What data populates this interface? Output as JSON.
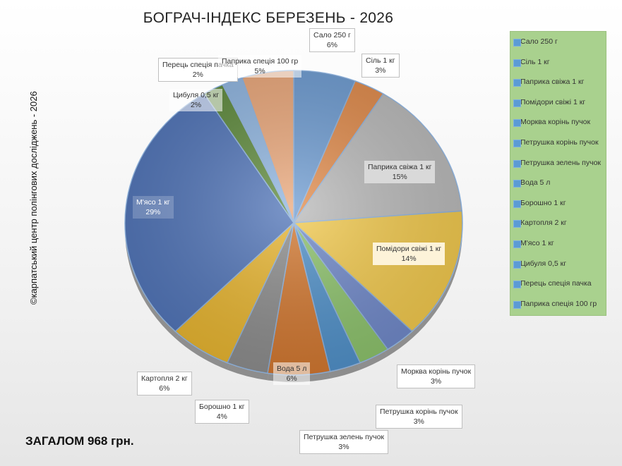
{
  "title": "БОГРАЧ-ІНДЕКС БЕРЕЗЕНЬ - 2026",
  "credit": "©карпатський центр полінгових досліджень - 2026",
  "total": "ЗАГАЛОМ 968 грн.",
  "chart_data": {
    "type": "pie",
    "title": "БОГРАЧ-ІНДЕКС БЕРЕЗЕНЬ - 2026",
    "unit": "%",
    "slices": [
      {
        "name": "Сало 250 г",
        "value": 6,
        "label": "6%",
        "color": "#6d9bd1"
      },
      {
        "name": "Сіль 1 кг",
        "value": 3,
        "label": "3%",
        "color": "#e08a4a"
      },
      {
        "name": "Паприка свіжа 1 кг",
        "value": 15,
        "label": "15%",
        "color": "#b9b9b9"
      },
      {
        "name": "Помідори свіжі 1 кг",
        "value": 14,
        "label": "14%",
        "color": "#f2c94c"
      },
      {
        "name": "Морква корінь пучок",
        "value": 3,
        "label": "3%",
        "color": "#6f88c9"
      },
      {
        "name": "Петрушка корінь пучок",
        "value": 3,
        "label": "3%",
        "color": "#8cc26b"
      },
      {
        "name": "Петрушка зелень пучок",
        "value": 3,
        "label": "3%",
        "color": "#4f90c9"
      },
      {
        "name": "Вода 5 л",
        "value": 6,
        "label": "6%",
        "color": "#d2772f"
      },
      {
        "name": "Борошно 1 кг",
        "value": 4,
        "label": "4%",
        "color": "#8c8c8c"
      },
      {
        "name": "Картопля 2 кг",
        "value": 6,
        "label": "6%",
        "color": "#e8b52f"
      },
      {
        "name": "М'ясо 1 кг",
        "value": 29,
        "label": "29%",
        "color": "#5074b8"
      },
      {
        "name": "Цибуля 0,5 кг",
        "value": 2,
        "label": "2%",
        "color": "#5e8a3c"
      },
      {
        "name": "Перець спеція пачка",
        "value": 2,
        "label": "2%",
        "color": "#8fb5e0"
      },
      {
        "name": "Паприка спеція 100 гр",
        "value": 5,
        "label": "5%",
        "color": "#eaa77a"
      }
    ],
    "legend": [
      "Сало 250 г",
      "Сіль 1 кг",
      "Паприка свіжа 1 кг",
      "Помідори свіжі 1 кг",
      "Морква корінь пучок",
      "Петрушка корінь пучок",
      "Петрушка зелень пучок",
      "Вода 5 л",
      "Борошно 1 кг",
      "Картопля 2 кг",
      "М'ясо 1 кг",
      "Цибуля 0,5 кг",
      "Перець спеція пачка",
      "Паприка спеція 100 гр"
    ],
    "legend_position": "right"
  }
}
